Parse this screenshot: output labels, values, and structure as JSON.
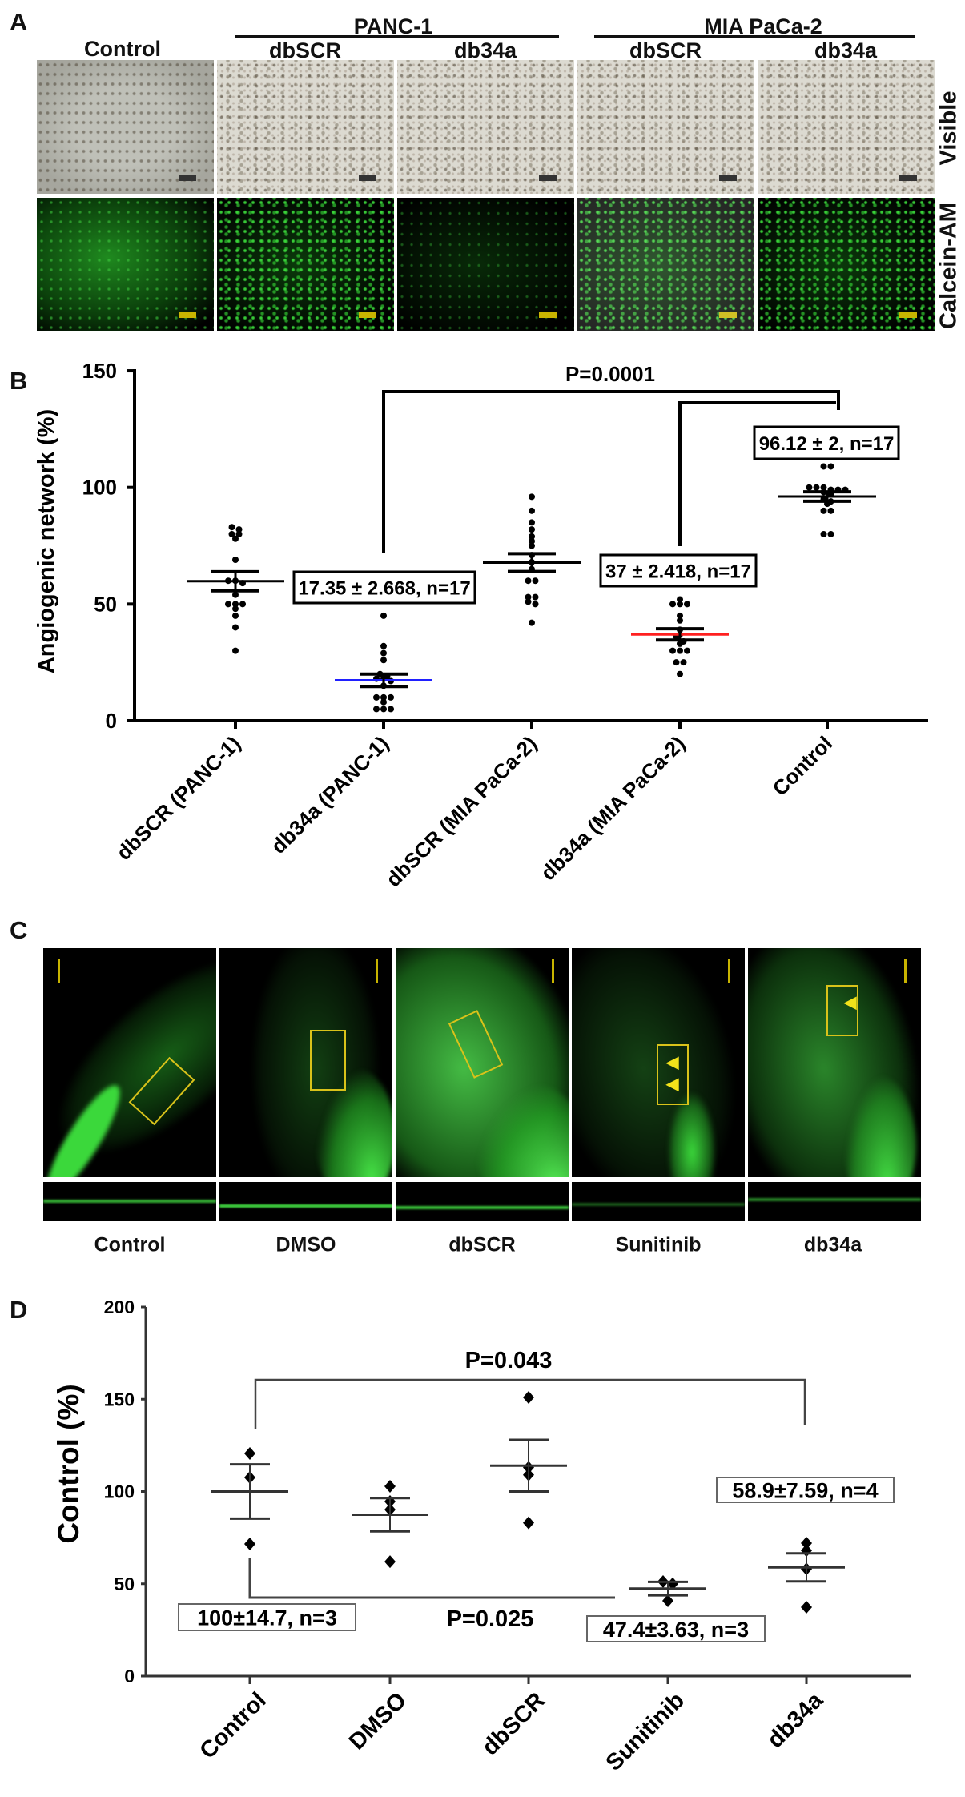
{
  "panel_labels": {
    "a": "A",
    "b": "B",
    "c": "C",
    "d": "D"
  },
  "panel_a": {
    "control_header": "Control",
    "group_headers": [
      "PANC-1",
      "MIA PaCa-2"
    ],
    "sub_headers": [
      "dbSCR",
      "db34a",
      "dbSCR",
      "db34a"
    ],
    "row_labels": [
      "Visible",
      "Calcein-AM"
    ]
  },
  "panel_c": {
    "labels": [
      "Control",
      "DMSO",
      "dbSCR",
      "Sunitinib",
      "db34a"
    ]
  },
  "chart_data": [
    {
      "type": "scatter",
      "panel": "B",
      "ylabel": "Angiogenic network (%)",
      "xlabel": "",
      "ylim": [
        0,
        150
      ],
      "yticks": [
        "0",
        "50",
        "100",
        "150"
      ],
      "categories": [
        "dbSCR (PANC-1)",
        "db34a (PANC-1)",
        "dbSCR (MIA PaCa-2)",
        "db34a (MIA PaCa-2)",
        "Control"
      ],
      "groups": [
        {
          "values": [
            83,
            82,
            80,
            80,
            78,
            69,
            60,
            60,
            59,
            54,
            50,
            50,
            50,
            48,
            45,
            40,
            30
          ],
          "mean": 59.8,
          "sem": 4.1,
          "mean_color": "#000000"
        },
        {
          "values": [
            45,
            32,
            29,
            26,
            20,
            19,
            18,
            18,
            17,
            15,
            10,
            10,
            10,
            8,
            5,
            5,
            5
          ],
          "mean": 17.35,
          "sem": 2.668,
          "mean_color": "#2020ff"
        },
        {
          "values": [
            96,
            90,
            85,
            82,
            79,
            77,
            75,
            71,
            68,
            65,
            60,
            60,
            53,
            53,
            51,
            50,
            42
          ],
          "mean": 67.8,
          "sem": 3.8,
          "mean_color": "#000000"
        },
        {
          "values": [
            52,
            50,
            50,
            50,
            45,
            43,
            39,
            37,
            36,
            34,
            33,
            30,
            30,
            30,
            25,
            25,
            20
          ],
          "mean": 37,
          "sem": 2.418,
          "mean_color": "#ff2020"
        },
        {
          "values": [
            109,
            109,
            100,
            100,
            100,
            99,
            99,
            99,
            98,
            97,
            95,
            94,
            93,
            90,
            90,
            80,
            80
          ],
          "mean": 96.12,
          "sem": 2,
          "mean_color": "#000000"
        }
      ],
      "annotations": [
        "17.35 ± 2.668, n=17",
        "37 ± 2.418, n=17",
        "96.12 ± 2, n=17"
      ],
      "significance": [
        {
          "text": "P=0.0001",
          "from": "db34a (PANC-1)",
          "to": "Control"
        },
        {
          "text": "",
          "from": "db34a (MIA PaCa-2)",
          "to": "Control"
        }
      ],
      "grid": false
    },
    {
      "type": "scatter",
      "panel": "D",
      "ylabel": "Control (%)",
      "xlabel": "",
      "ylim": [
        0,
        200
      ],
      "yticks": [
        "0",
        "50",
        "100",
        "150",
        "200"
      ],
      "categories": [
        "Control",
        "DMSO",
        "dbSCR",
        "Sunitinib",
        "db34a"
      ],
      "groups": [
        {
          "values": [
            120.6,
            107.6,
            71.6
          ],
          "mean": 100,
          "sem": 14.7
        },
        {
          "values": [
            102.8,
            94.6,
            90.2,
            62
          ],
          "mean": 87.4,
          "sem": 9
        },
        {
          "values": [
            151,
            113,
            109,
            83
          ],
          "mean": 114,
          "sem": 14
        },
        {
          "values": [
            51.2,
            50,
            40.8
          ],
          "mean": 47.4,
          "sem": 3.63
        },
        {
          "values": [
            72,
            68,
            58,
            37.3
          ],
          "mean": 58.9,
          "sem": 7.59
        }
      ],
      "annotations": [
        "100±14.7, n=3",
        "47.4±3.63, n=3",
        "58.9±7.59, n=4"
      ],
      "significance": [
        {
          "text": "P=0.043",
          "from": "Control",
          "to": "db34a"
        },
        {
          "text": "P=0.025",
          "from": "Control",
          "to": "Sunitinib"
        }
      ],
      "grid": false
    }
  ]
}
